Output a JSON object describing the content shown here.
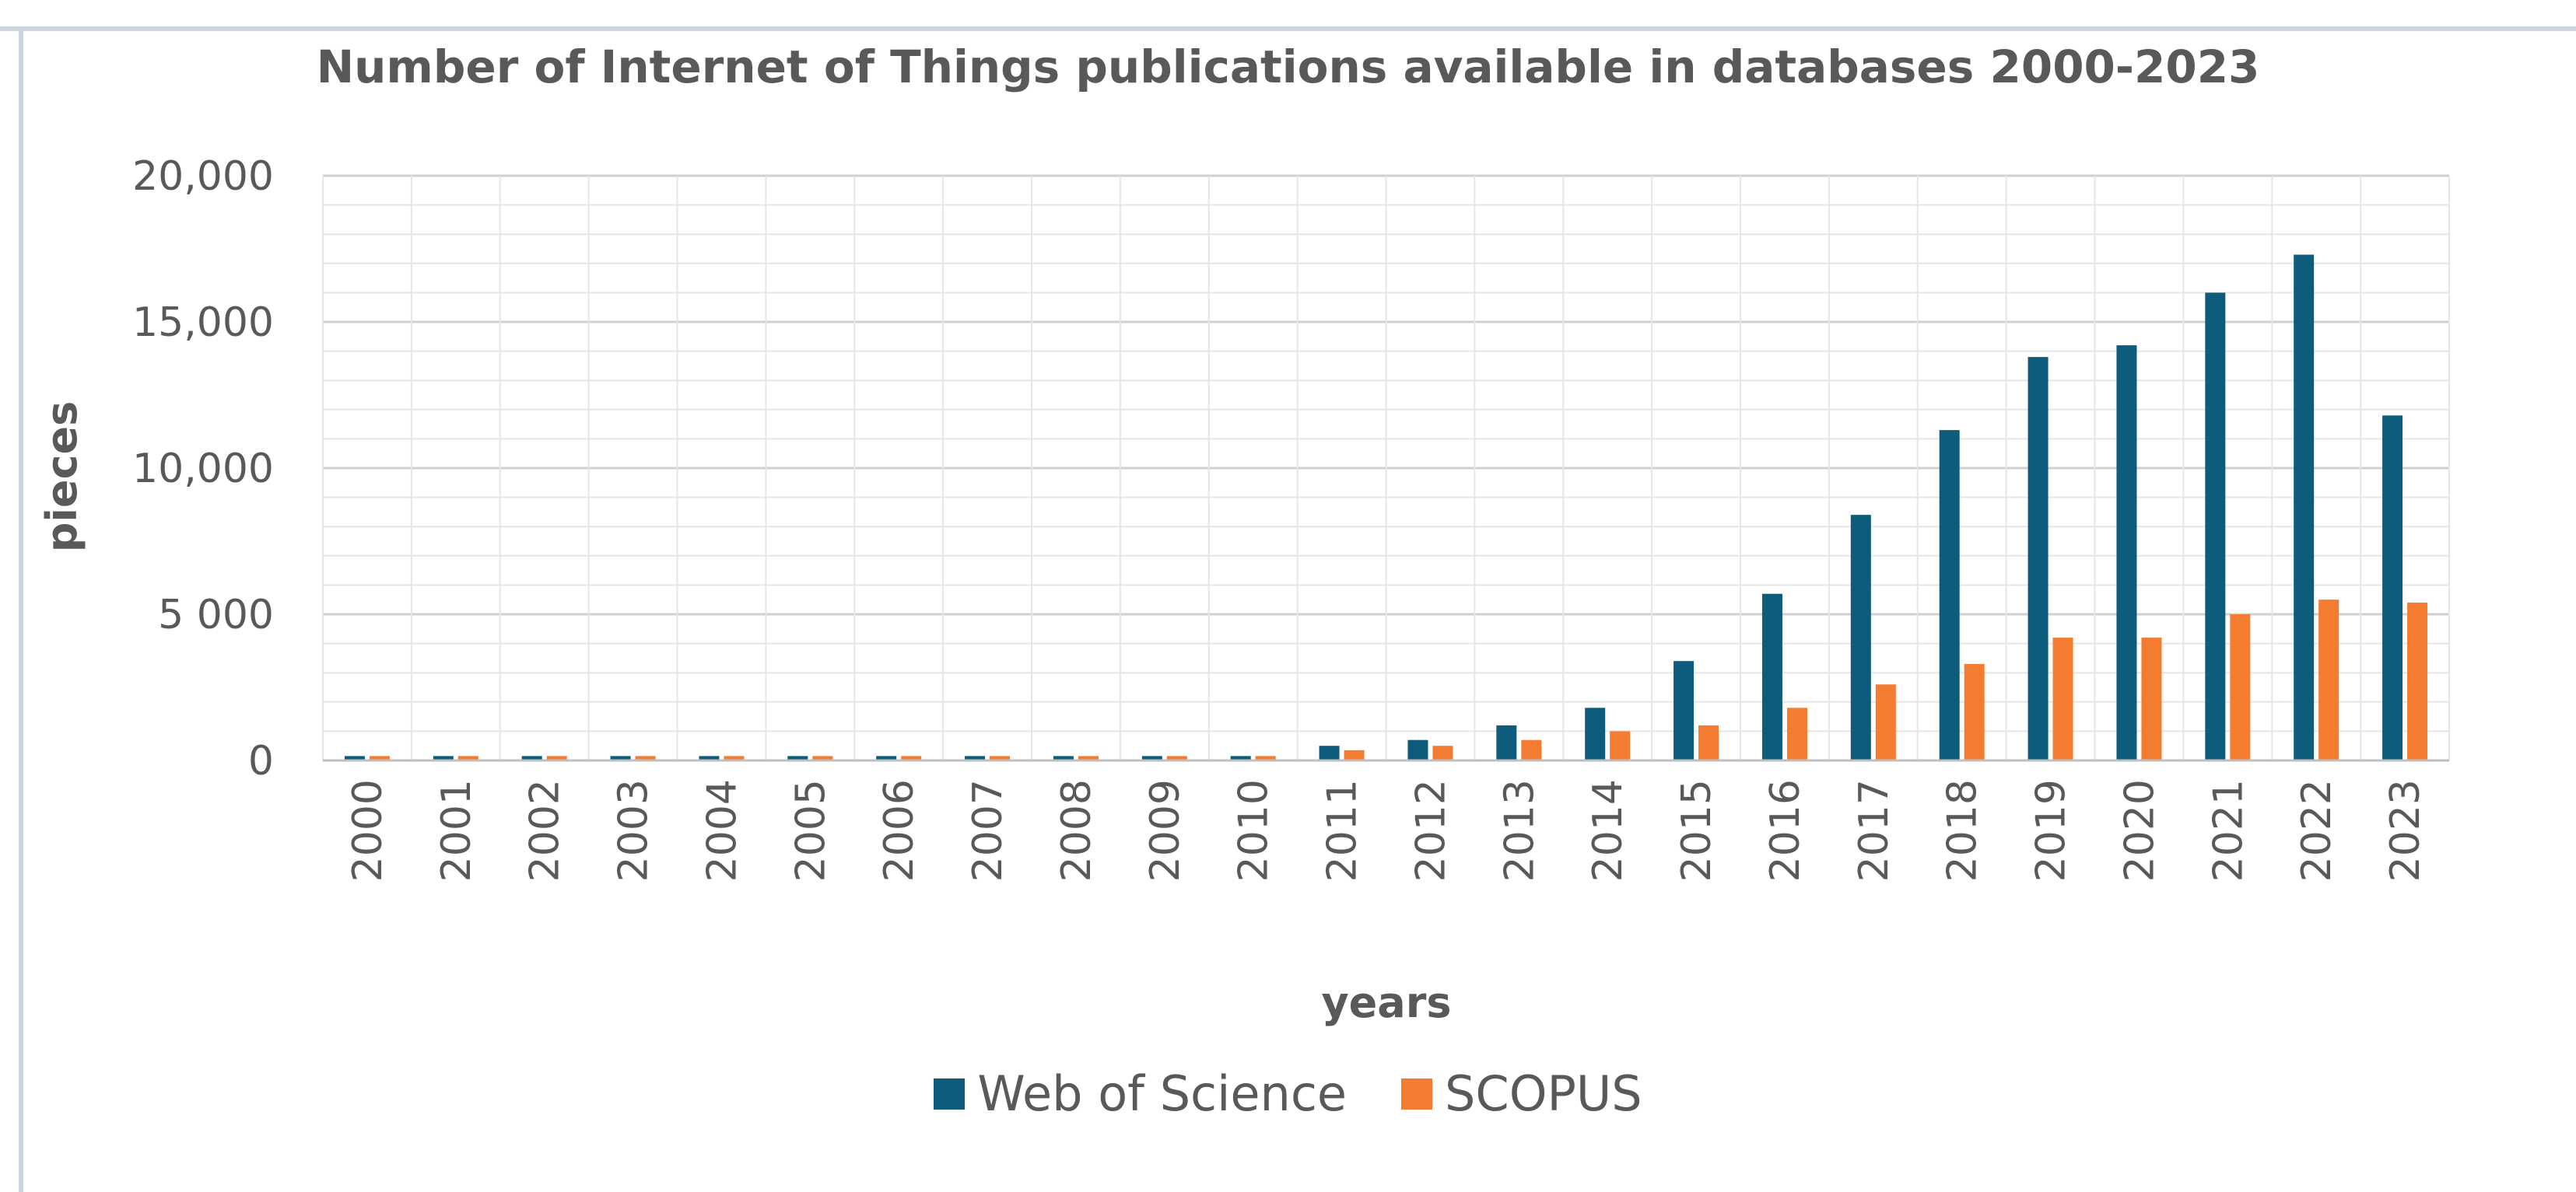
{
  "chart_data": {
    "type": "bar",
    "title": "Number of Internet of Things publications  available in databases  2000-2023",
    "xlabel": "years",
    "ylabel": "pieces",
    "ylim": [
      0,
      20000
    ],
    "yticks": [
      0,
      5000,
      10000,
      15000,
      20000
    ],
    "ytick_labels": [
      "0",
      "5 000",
      "10,000",
      "15,000",
      "20,000"
    ],
    "grid": true,
    "legend_position": "bottom",
    "categories": [
      "2000",
      "2001",
      "2002",
      "2003",
      "2004",
      "2005",
      "2006",
      "2007",
      "2008",
      "2009",
      "2010",
      "2011",
      "2012",
      "2013",
      "2014",
      "2015",
      "2016",
      "2017",
      "2018",
      "2019",
      "2020",
      "2021",
      "2022",
      "2023"
    ],
    "series": [
      {
        "name": "Web of Science",
        "color": "#0e5c7b",
        "values": [
          150,
          150,
          150,
          150,
          150,
          150,
          150,
          150,
          150,
          150,
          150,
          500,
          700,
          1200,
          1800,
          3400,
          5700,
          8400,
          11300,
          13800,
          14200,
          16000,
          17300,
          11800
        ]
      },
      {
        "name": "SCOPUS",
        "color": "#f47c30",
        "values": [
          150,
          150,
          150,
          150,
          150,
          150,
          150,
          150,
          150,
          150,
          150,
          350,
          500,
          700,
          1000,
          1200,
          1800,
          2600,
          3300,
          4200,
          4200,
          5000,
          5500,
          5400
        ]
      }
    ]
  }
}
